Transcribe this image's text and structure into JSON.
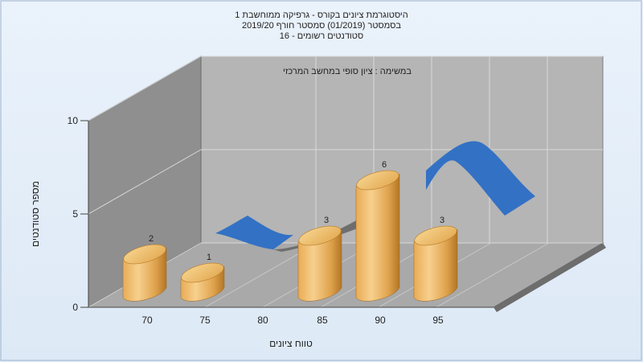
{
  "chart_data": {
    "type": "bar",
    "title_lines": [
      "היסטוגרמת ציונים בקורס - גרפיקה ממוחשבת 1",
      "בסמסטר (01/2019) סמסטר חורף 2019/20",
      "סטודנטים רשומים - 16"
    ],
    "subtitle": "במשימה : ציון סופי במחשב המרכזי",
    "xlabel": "טווח ציונים",
    "ylabel": "מספר סטודנטים",
    "ylim": [
      0,
      10
    ],
    "y_ticks": [
      "0",
      "5",
      "10"
    ],
    "x_ticks": [
      "70",
      "75",
      "80",
      "85",
      "90",
      "95"
    ],
    "categories": [
      "70",
      "75",
      "80",
      "85",
      "90",
      "95"
    ],
    "values": [
      2,
      1,
      null,
      3,
      6,
      3
    ],
    "data_labels": [
      "2",
      "1",
      "",
      "3",
      "6",
      "3"
    ],
    "grid": true,
    "colors": {
      "bar_light": "#f6cc83",
      "bar_mid": "#e0a550",
      "bar_dark": "#b27525",
      "curve_front": "#3371c4",
      "curve_back": "#6f6f6f",
      "wall_back": "#b5b5b5",
      "wall_left": "#8f8f8f",
      "floor": "#a9a9a9"
    }
  }
}
